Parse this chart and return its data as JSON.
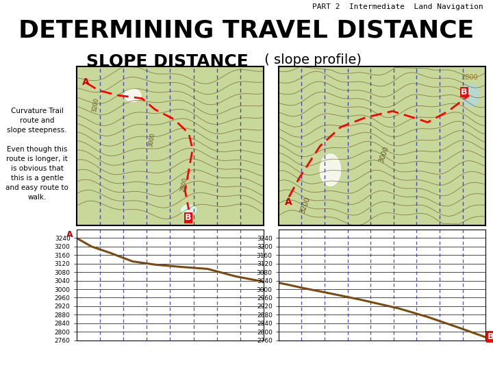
{
  "title_top": "PART 2  Intermediate  Land Navigation",
  "title_main": "DETERMINING TRAVEL DISTANCE",
  "title_sub": "SLOPE DISTANCE",
  "title_sub2": " ( slope profile)",
  "left_text": "Curvature Trail\nroute and\nslope steepness.\n\nEven though this\nroute is longer, it\nis obvious that\nthis is a gentle\nand easy route to\nwalk.",
  "map_bg": "#c8d89a",
  "yticks": [
    3240,
    3200,
    3160,
    3120,
    3080,
    3040,
    3000,
    2960,
    2920,
    2880,
    2840,
    2800,
    2760
  ],
  "profile1_x": [
    0,
    0.08,
    0.18,
    0.3,
    0.42,
    0.55,
    0.7,
    0.85,
    1.0
  ],
  "profile1_y": [
    3240,
    3200,
    3170,
    3130,
    3115,
    3105,
    3095,
    3060,
    3035
  ],
  "profile2_x": [
    0,
    0.05,
    0.12,
    0.25,
    0.4,
    0.58,
    0.72,
    0.87,
    1.0
  ],
  "profile2_y": [
    3030,
    3020,
    3005,
    2980,
    2950,
    2910,
    2870,
    2820,
    2775
  ],
  "dashed_color": "#3333aa",
  "profile_color": "#7b4a10",
  "label_A_color": "#cc0000",
  "label_B_color": "#cc0000",
  "contour_color": "#5a4010"
}
